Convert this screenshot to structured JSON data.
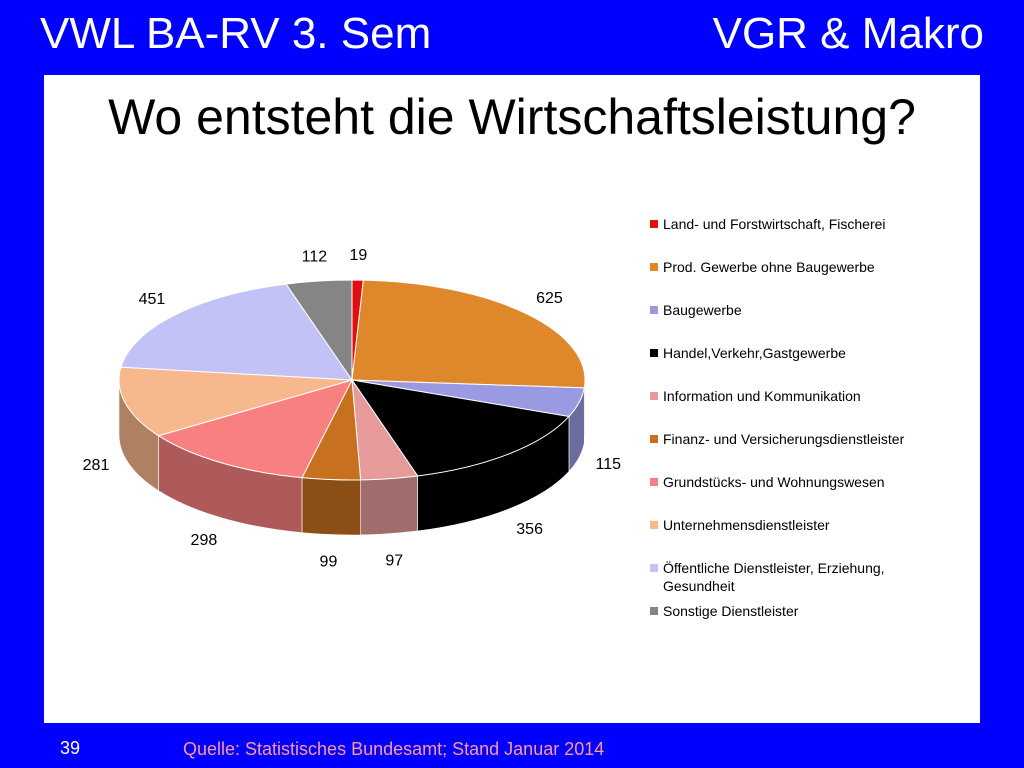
{
  "header": {
    "left": "VWL BA-RV 3. Sem",
    "right": "VGR & Makro"
  },
  "slide": {
    "page_number": "39",
    "source": "Quelle: Statistisches Bundesamt; Stand Januar 2014"
  },
  "chart_data": {
    "type": "pie",
    "title": "Wo entsteht die Wirtschaftsleistung?",
    "style": "3d-exploded-none",
    "legend_position": "right",
    "categories": [
      "Land- und Forstwirtschaft, Fischerei",
      "Prod. Gewerbe ohne Baugewerbe",
      "Baugewerbe",
      "Handel,Verkehr,Gastgewerbe",
      "Information und Kommunikation",
      "Finanz- und Versicherungsdienstleister",
      "Grundstücks- und Wohnungswesen",
      "Unternehmensdienstleister",
      "Öffentliche Dienstleister, Erziehung, Gesundheit",
      "Sonstige Dienstleister"
    ],
    "values": [
      19,
      625,
      115,
      356,
      97,
      99,
      298,
      281,
      451,
      112
    ],
    "data_labels": [
      "19",
      "625",
      "115",
      "356",
      "97",
      "99",
      "298",
      "281",
      "451",
      "112"
    ],
    "colors": [
      "#e01010",
      "#df872b",
      "#9a9ae3",
      "#000000",
      "#e69a9a",
      "#c7711f",
      "#f88080",
      "#f8b88e",
      "#c2c2f6",
      "#858585"
    ]
  }
}
